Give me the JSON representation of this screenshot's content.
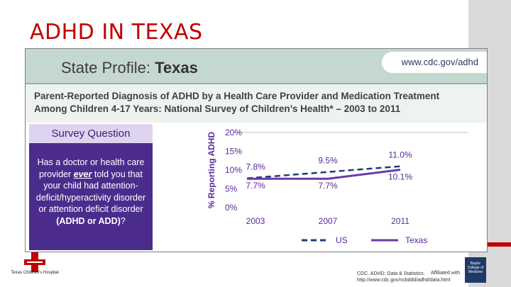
{
  "slide": {
    "title": "ADHD IN TEXAS"
  },
  "header": {
    "profile_label": "State Profile:",
    "profile_state": "Texas",
    "url": "www.cdc.gov/adhd",
    "subtitle_line1": "Parent-Reported Diagnosis of ADHD by a Health Care Provider and Medication Treatment",
    "subtitle_line2": "Among Children 4-17 Years: National Survey of Children’s Health* – 2003 to 2011"
  },
  "survey": {
    "heading": "Survey Question",
    "q_part1": "Has a doctor or health care provider ",
    "q_ever": "ever",
    "q_part2": " told you that your child had attention-deficit/hyperactivity disorder or attention deficit disorder ",
    "q_bold": "(ADHD or ADD)",
    "q_end": "?"
  },
  "chart_data": {
    "type": "line",
    "ylabel": "% Reporting ADHD",
    "xlabel": "",
    "categories": [
      "2003",
      "2007",
      "2011"
    ],
    "ylim": [
      0,
      20
    ],
    "yticks": [
      "0%",
      "5%",
      "10%",
      "15%",
      "20%"
    ],
    "series": [
      {
        "name": "US",
        "values": [
          7.8,
          9.5,
          11.0
        ],
        "labels": [
          "7.8%",
          "9.5%",
          "11.0%"
        ],
        "color": "#1f3a7a",
        "style": "dashed"
      },
      {
        "name": "Texas",
        "values": [
          7.7,
          7.7,
          10.1
        ],
        "labels": [
          "7.7%",
          "7.7%",
          "10.1%"
        ],
        "color": "#6a3aa8",
        "style": "solid"
      }
    ],
    "legend_position": "bottom"
  },
  "footer": {
    "logo_text": "Texas Children's Hospital",
    "source_line1": "CDC. ADHD: Data & Statistics.",
    "source_line2": "http://www.cdc.gov/ncbddd/adhd/data.html",
    "affiliation": "Affiliated with",
    "baylor": "Baylor College of Medicine"
  },
  "colors": {
    "title_red": "#c00000",
    "purple_box": "#4b2c8c",
    "us_line": "#1f3a7a",
    "texas_line": "#6a3aa8"
  }
}
